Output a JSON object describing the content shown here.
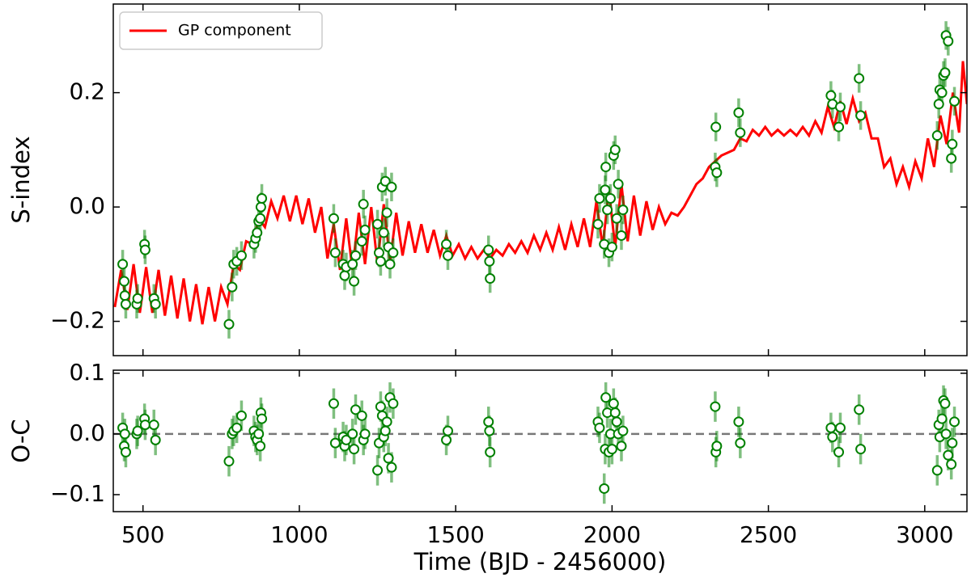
{
  "chart_data": [
    {
      "type": "scatter",
      "ylabel": "S-index",
      "xlim": [
        405,
        3135
      ],
      "xticks": [
        500,
        1000,
        1500,
        2000,
        2500,
        3000
      ],
      "ylim": [
        -0.26,
        0.355
      ],
      "yticks": [
        {
          "value": -0.2,
          "label": "−0.2"
        },
        {
          "value": 0,
          "label": "0.0"
        },
        {
          "value": 0.2,
          "label": "0.2"
        }
      ],
      "legend": "upper left",
      "series": [
        {
          "name": "GP component",
          "type": "line",
          "color": "#ff0000",
          "x": [
            410,
            430,
            450,
            470,
            490,
            510,
            530,
            550,
            570,
            590,
            610,
            630,
            650,
            670,
            690,
            710,
            730,
            750,
            770,
            790,
            810,
            830,
            850,
            870,
            890,
            910,
            930,
            950,
            970,
            990,
            1010,
            1030,
            1050,
            1070,
            1090,
            1110,
            1130,
            1150,
            1170,
            1190,
            1210,
            1230,
            1250,
            1270,
            1290,
            1310,
            1330,
            1350,
            1370,
            1390,
            1410,
            1430,
            1450,
            1470,
            1490,
            1510,
            1530,
            1550,
            1570,
            1590,
            1610,
            1630,
            1650,
            1670,
            1690,
            1710,
            1730,
            1750,
            1770,
            1790,
            1810,
            1830,
            1850,
            1870,
            1890,
            1910,
            1930,
            1950,
            1970,
            1990,
            2010,
            2030,
            2050,
            2070,
            2090,
            2110,
            2130,
            2150,
            2170,
            2190,
            2210,
            2230,
            2250,
            2270,
            2290,
            2310,
            2330,
            2350,
            2370,
            2390,
            2410,
            2430,
            2450,
            2470,
            2490,
            2510,
            2530,
            2550,
            2570,
            2590,
            2610,
            2630,
            2650,
            2670,
            2690,
            2710,
            2730,
            2750,
            2770,
            2790,
            2810,
            2830,
            2850,
            2870,
            2890,
            2910,
            2930,
            2950,
            2970,
            2990,
            3010,
            3030,
            3050,
            3070,
            3090,
            3110,
            3122,
            3135
          ],
          "values": [
            -0.175,
            -0.11,
            -0.18,
            -0.1,
            -0.185,
            -0.105,
            -0.185,
            -0.11,
            -0.19,
            -0.12,
            -0.195,
            -0.125,
            -0.2,
            -0.135,
            -0.205,
            -0.14,
            -0.2,
            -0.14,
            -0.17,
            -0.1,
            -0.11,
            -0.06,
            -0.065,
            -0.02,
            -0.035,
            0.01,
            -0.02,
            0.02,
            -0.025,
            0.02,
            -0.03,
            0.015,
            -0.045,
            0.0,
            -0.09,
            -0.03,
            -0.11,
            -0.02,
            -0.11,
            -0.01,
            -0.1,
            0.0,
            -0.1,
            0.005,
            -0.095,
            -0.01,
            -0.085,
            -0.025,
            -0.08,
            -0.03,
            -0.08,
            -0.04,
            -0.085,
            -0.05,
            -0.085,
            -0.065,
            -0.09,
            -0.07,
            -0.09,
            -0.075,
            -0.09,
            -0.075,
            -0.085,
            -0.065,
            -0.08,
            -0.06,
            -0.08,
            -0.05,
            -0.075,
            -0.045,
            -0.075,
            -0.035,
            -0.075,
            -0.03,
            -0.07,
            -0.02,
            -0.07,
            0.01,
            -0.07,
            0.03,
            -0.07,
            0.04,
            -0.06,
            0.02,
            -0.05,
            0.01,
            -0.04,
            0.0,
            -0.03,
            -0.01,
            -0.015,
            0.0,
            0.02,
            0.04,
            0.05,
            0.07,
            0.08,
            0.09,
            0.095,
            0.1,
            0.12,
            0.115,
            0.135,
            0.125,
            0.14,
            0.125,
            0.135,
            0.125,
            0.135,
            0.125,
            0.14,
            0.125,
            0.15,
            0.13,
            0.175,
            0.14,
            0.185,
            0.145,
            0.19,
            0.15,
            0.165,
            0.12,
            0.12,
            0.07,
            0.085,
            0.04,
            0.07,
            0.035,
            0.08,
            0.05,
            0.12,
            0.07,
            0.16,
            0.11,
            0.2,
            0.13,
            0.255,
            0.18
          ]
        },
        {
          "type": "scatter",
          "color": "#008000",
          "error": 0.025,
          "x": [
            435,
            440,
            442,
            445,
            480,
            483,
            505,
            507,
            535,
            540,
            775,
            785,
            790,
            800,
            815,
            855,
            860,
            865,
            870,
            875,
            877,
            880,
            1110,
            1115,
            1140,
            1145,
            1150,
            1170,
            1175,
            1180,
            1200,
            1205,
            1210,
            1250,
            1255,
            1260,
            1265,
            1270,
            1275,
            1280,
            1285,
            1290,
            1295,
            1300,
            1470,
            1475,
            1605,
            1608,
            1610,
            1955,
            1960,
            1975,
            1978,
            1980,
            1985,
            1990,
            1995,
            2000,
            2005,
            2010,
            2015,
            2020,
            2030,
            2035,
            2330,
            2332,
            2335,
            2405,
            2410,
            2700,
            2705,
            2725,
            2730,
            2790,
            2795,
            3040,
            3045,
            3048,
            3055,
            3060,
            3065,
            3068,
            3075,
            3085,
            3088,
            3095
          ],
          "values": [
            -0.1,
            -0.13,
            -0.155,
            -0.17,
            -0.17,
            -0.16,
            -0.065,
            -0.075,
            -0.16,
            -0.17,
            -0.205,
            -0.14,
            -0.1,
            -0.095,
            -0.085,
            -0.065,
            -0.055,
            -0.045,
            -0.025,
            -0.02,
            0.0,
            0.015,
            -0.02,
            -0.08,
            -0.1,
            -0.12,
            -0.105,
            -0.1,
            -0.13,
            -0.085,
            -0.06,
            0.005,
            -0.04,
            -0.03,
            -0.08,
            -0.095,
            0.035,
            -0.045,
            0.045,
            -0.01,
            -0.07,
            -0.1,
            0.035,
            -0.08,
            -0.065,
            -0.085,
            -0.075,
            -0.095,
            -0.125,
            -0.03,
            0.015,
            -0.065,
            0.03,
            0.07,
            -0.005,
            -0.08,
            0.015,
            -0.07,
            0.09,
            0.1,
            -0.02,
            0.04,
            -0.05,
            -0.005,
            0.07,
            0.14,
            0.06,
            0.165,
            0.13,
            0.195,
            0.18,
            0.14,
            0.175,
            0.225,
            0.16,
            0.125,
            0.18,
            0.205,
            0.2,
            0.23,
            0.235,
            0.3,
            0.29,
            0.085,
            0.11,
            0.185
          ]
        }
      ]
    },
    {
      "type": "scatter",
      "ylabel": "O-C",
      "xlabel": "Time (BJD - 2456000)",
      "xlim": [
        405,
        3135
      ],
      "xticks": [
        500,
        1000,
        1500,
        2000,
        2500,
        3000
      ],
      "ylim": [
        -0.128,
        0.105
      ],
      "yticks": [
        {
          "value": -0.1,
          "label": "−0.1"
        },
        {
          "value": 0,
          "label": "0.0"
        },
        0.1
      ],
      "hline": 0,
      "series": [
        {
          "type": "scatter",
          "color": "#008000",
          "error": 0.025,
          "x": [
            435,
            440,
            442,
            445,
            480,
            483,
            505,
            507,
            535,
            540,
            775,
            785,
            790,
            800,
            815,
            855,
            860,
            865,
            870,
            875,
            877,
            880,
            1110,
            1115,
            1140,
            1145,
            1150,
            1170,
            1175,
            1180,
            1200,
            1205,
            1210,
            1250,
            1255,
            1260,
            1265,
            1270,
            1275,
            1280,
            1285,
            1290,
            1295,
            1300,
            1470,
            1475,
            1605,
            1608,
            1610,
            1955,
            1960,
            1975,
            1978,
            1980,
            1985,
            1990,
            1995,
            2000,
            2005,
            2010,
            2015,
            2020,
            2030,
            2035,
            2330,
            2332,
            2335,
            2405,
            2410,
            2700,
            2705,
            2725,
            2730,
            2790,
            2795,
            3040,
            3045,
            3048,
            3055,
            3060,
            3065,
            3068,
            3075,
            3085,
            3088,
            3095
          ],
          "values": [
            0.01,
            -0.02,
            0.0,
            -0.03,
            0.0,
            0.005,
            0.025,
            0.015,
            0.015,
            -0.01,
            -0.045,
            0.0,
            0.005,
            0.01,
            0.03,
            0.005,
            -0.005,
            -0.01,
            0.0,
            -0.02,
            0.035,
            0.025,
            0.05,
            -0.015,
            -0.005,
            -0.02,
            -0.01,
            0.0,
            -0.025,
            0.04,
            0.03,
            -0.01,
            0.0,
            -0.06,
            -0.015,
            0.045,
            0.03,
            -0.005,
            0.005,
            0.02,
            -0.04,
            0.06,
            -0.055,
            0.05,
            -0.01,
            0.005,
            0.02,
            0.005,
            -0.03,
            0.02,
            0.01,
            -0.09,
            -0.025,
            0.06,
            0.035,
            -0.03,
            0.0,
            -0.025,
            0.05,
            0.035,
            0.02,
            0.0,
            -0.02,
            0.005,
            0.045,
            -0.03,
            -0.02,
            0.02,
            -0.015,
            0.01,
            -0.005,
            -0.03,
            0.01,
            0.04,
            -0.025,
            -0.06,
            0.015,
            -0.005,
            0.025,
            0.055,
            0.05,
            0.0,
            -0.035,
            -0.05,
            -0.015,
            0.02
          ]
        }
      ]
    }
  ]
}
